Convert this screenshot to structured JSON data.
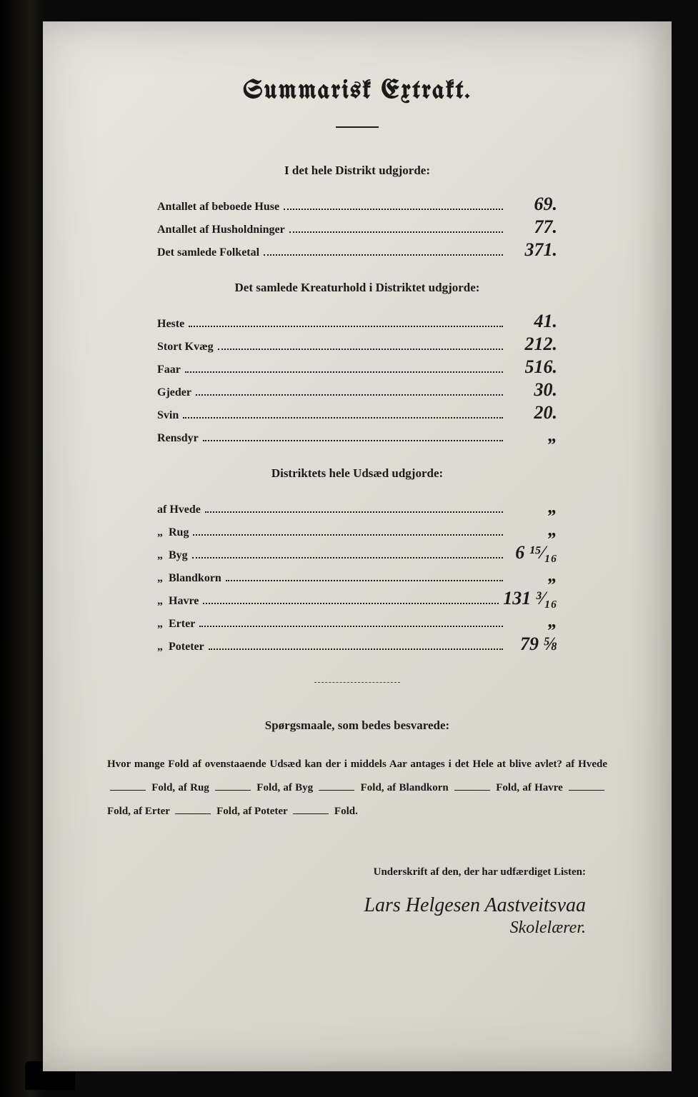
{
  "colors": {
    "page_bg_light": "#e8e6de",
    "page_bg_dark": "#d4d2c8",
    "ink": "#1a1a1a",
    "frame": "#0a0a0a"
  },
  "typography": {
    "title_fontsize": 36,
    "section_fontsize": 17,
    "row_fontsize": 16,
    "handwriting_fontsize": 26
  },
  "title": "Summarisk Extrakt.",
  "section1": {
    "heading": "I det hele Distrikt udgjorde:",
    "rows": [
      {
        "label": "Antallet af beboede Huse",
        "value": "69."
      },
      {
        "label": "Antallet af Husholdninger",
        "value": "77."
      },
      {
        "label": "Det samlede Folketal",
        "value": "371."
      }
    ]
  },
  "section2": {
    "heading": "Det samlede Kreaturhold i Distriktet udgjorde:",
    "rows": [
      {
        "label": "Heste",
        "value": "41."
      },
      {
        "label": "Stort Kvæg",
        "value": "212."
      },
      {
        "label": "Faar",
        "value": "516."
      },
      {
        "label": "Gjeder",
        "value": "30."
      },
      {
        "label": "Svin",
        "value": "20."
      },
      {
        "label": "Rensdyr",
        "value": "„"
      }
    ]
  },
  "section3": {
    "heading": "Distriktets hele Udsæd udgjorde:",
    "rows": [
      {
        "label": "af Hvede",
        "value": "„"
      },
      {
        "label": "„  Rug",
        "value": "„"
      },
      {
        "label": "„  Byg",
        "value": "6 ¹⁵⁄₁₆"
      },
      {
        "label": "„  Blandkorn",
        "value": "„"
      },
      {
        "label": "„  Havre",
        "value": "131 ³⁄₁₆"
      },
      {
        "label": "„  Erter",
        "value": "„"
      },
      {
        "label": "„  Poteter",
        "value": "79 ⅝"
      }
    ]
  },
  "questions": {
    "heading": "Spørgsmaale, som bedes besvarede:",
    "text_parts": {
      "p1": "Hvor mange Fold af ovenstaaende Udsæd kan der i middels Aar antages i det Hele at blive avlet?  af Hvede",
      "fold": "Fold,",
      "af_rug": "af Rug",
      "af_byg": "Fold, af Byg",
      "af_blandkorn": "Fold, af Blandkorn",
      "af_havre": "Fold, af Havre",
      "af_erter": "Fold, af Erter",
      "af_poteter": "af Poteter",
      "fold_end": "Fold."
    }
  },
  "signature": {
    "label": "Underskrift af den, der har udfærdiget Listen:",
    "name": "Lars Helgesen Aastveitsvaa",
    "role": "Skolelærer."
  }
}
